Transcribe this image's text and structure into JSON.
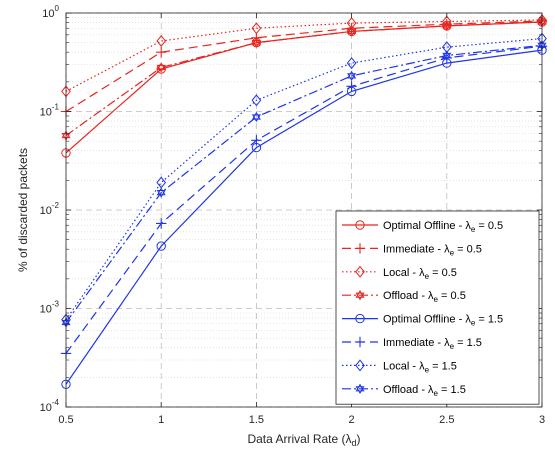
{
  "chart_data": {
    "type": "line",
    "xlabel": "Data Arrival Rate (λ",
    "xlabel_sub": "d",
    "xlabel_close": ")",
    "ylabel": "% of discarded packets",
    "xlim": [
      0.5,
      3
    ],
    "ylim": [
      0.0001,
      1
    ],
    "yscale": "log",
    "grid": true,
    "legend_position": "bottom-right",
    "x": [
      0.5,
      1,
      1.5,
      2,
      2.5,
      3
    ],
    "x_tick_labels": [
      "0.5",
      "1",
      "1.5",
      "2",
      "2.5",
      "3"
    ],
    "y_ticks": [
      {
        "value": 0.0001,
        "base": "10",
        "exp": "-4"
      },
      {
        "value": 0.001,
        "base": "10",
        "exp": "-3"
      },
      {
        "value": 0.01,
        "base": "10",
        "exp": "-2"
      },
      {
        "value": 0.1,
        "base": "10",
        "exp": "-1"
      },
      {
        "value": 1,
        "base": "10",
        "exp": "0"
      }
    ],
    "series": [
      {
        "name": "Optimal Offline - λ",
        "sub": "e",
        "suffix": " = 0.5",
        "color": "#e8251f",
        "dash": "",
        "marker": "circle",
        "values": [
          0.038,
          0.27,
          0.5,
          0.65,
          0.74,
          0.81
        ]
      },
      {
        "name": "Immediate - λ",
        "sub": "e",
        "suffix": " = 0.5",
        "color": "#e8251f",
        "dash": "9,5",
        "marker": "plus",
        "values": [
          0.1,
          0.4,
          0.56,
          0.7,
          0.77,
          0.83
        ]
      },
      {
        "name": "Local - λ",
        "sub": "e",
        "suffix": " = 0.5",
        "color": "#e8251f",
        "dash": "1.5,2.5",
        "marker": "diamond",
        "values": [
          0.16,
          0.52,
          0.7,
          0.79,
          0.82,
          0.85
        ]
      },
      {
        "name": "Offload - λ",
        "sub": "e",
        "suffix": " = 0.5",
        "color": "#e8251f",
        "dash": "9,3,2,3",
        "marker": "hexagram",
        "values": [
          0.057,
          0.28,
          0.5,
          0.65,
          0.74,
          0.81
        ]
      },
      {
        "name": "Optimal Offline - λ",
        "sub": "e",
        "suffix": " = 1.5",
        "color": "#1f35e8",
        "dash": "",
        "marker": "circle",
        "values": [
          0.00017,
          0.0043,
          0.043,
          0.16,
          0.31,
          0.42
        ]
      },
      {
        "name": "Immediate - λ",
        "sub": "e",
        "suffix": " = 1.5",
        "color": "#1f35e8",
        "dash": "9,5",
        "marker": "plus",
        "values": [
          0.00035,
          0.0073,
          0.051,
          0.18,
          0.35,
          0.46
        ]
      },
      {
        "name": "Local - λ",
        "sub": "e",
        "suffix": " = 1.5",
        "color": "#1f35e8",
        "dash": "1.5,2.5",
        "marker": "diamond",
        "values": [
          0.00077,
          0.019,
          0.13,
          0.31,
          0.45,
          0.55
        ]
      },
      {
        "name": "Offload - λ",
        "sub": "e",
        "suffix": " = 1.5",
        "color": "#1f35e8",
        "dash": "9,3,2,3",
        "marker": "hexagram",
        "values": [
          0.00072,
          0.015,
          0.088,
          0.23,
          0.37,
          0.47
        ]
      }
    ]
  }
}
